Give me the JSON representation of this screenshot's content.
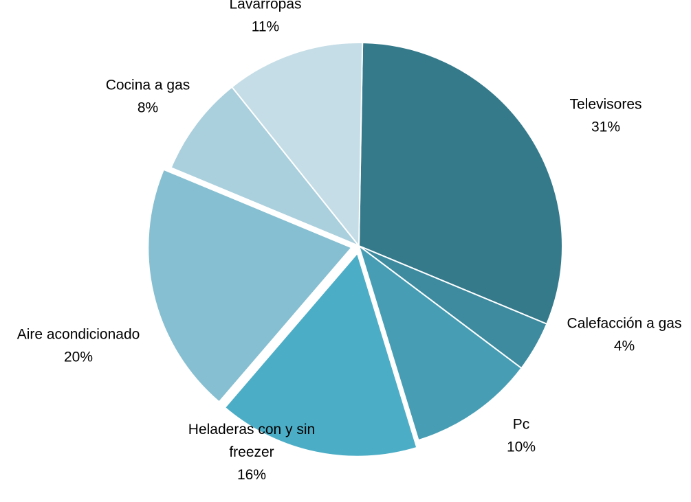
{
  "chart_data": {
    "type": "pie",
    "title": "",
    "start_angle_deg": 1,
    "direction": "clockwise",
    "slices": [
      {
        "label": "Televisores",
        "value": 31,
        "value_label": "31%",
        "color": "#357A8B",
        "exploded": false
      },
      {
        "label": "Calefacción a gas",
        "value": 4,
        "value_label": "4%",
        "color": "#3E8BA0",
        "exploded": false
      },
      {
        "label": "Pc",
        "value": 10,
        "value_label": "10%",
        "color": "#479EB4",
        "exploded": false
      },
      {
        "label": "Heladeras con y sin freezer",
        "label_lines": [
          "Heladeras con y sin",
          "freezer"
        ],
        "value": 16,
        "value_label": "16%",
        "color": "#4BADC6",
        "exploded": true
      },
      {
        "label": "Aire acondicionado",
        "value": 20,
        "value_label": "20%",
        "color": "#86BFD1",
        "exploded": true
      },
      {
        "label": "Cocina a gas",
        "value": 8,
        "value_label": "8%",
        "color": "#AACFDD",
        "exploded": false
      },
      {
        "label": "Lavarropas",
        "value": 11,
        "value_label": "11%",
        "color": "#C5DDE6",
        "exploded": false
      }
    ]
  }
}
